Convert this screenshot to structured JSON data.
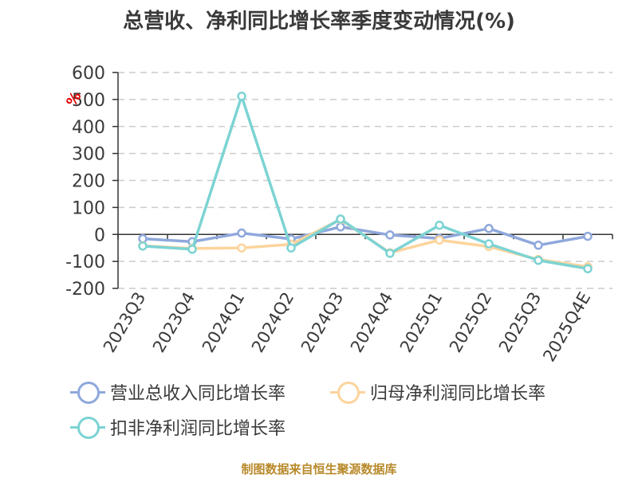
{
  "header": {
    "title": "总营收、净利同比增长率季度变动情况(%)"
  },
  "footer": {
    "source": "制图数据来自恒生聚源数据库"
  },
  "colors": {
    "revenue": "#8fa8dc",
    "net_profit": "#fdd49c",
    "deducted_net_profit": "#7dd3d3",
    "unit_label": "#e60000",
    "text": "#3a3a3a",
    "footer": "#b8892a"
  },
  "legend": {
    "items": [
      {
        "label": "营业总收入同比增长率",
        "color": "#8fa8dc"
      },
      {
        "label": "归母净利润同比增长率",
        "color": "#fdd49c"
      },
      {
        "label": "扣非净利润同比增长率",
        "color": "#7dd3d3"
      }
    ]
  },
  "chart_data": {
    "type": "line",
    "title": "总营收、净利同比增长率季度变动情况(%)",
    "xlabel": "",
    "ylabel": "%",
    "ylim": [
      -200,
      600
    ],
    "yticks": [
      600,
      500,
      400,
      300,
      200,
      100,
      0,
      -100,
      -200
    ],
    "grid": true,
    "legend_position": "bottom",
    "categories": [
      "2023Q3",
      "2023Q4",
      "2024Q1",
      "2024Q2",
      "2024Q3",
      "2024Q4",
      "2025Q1",
      "2025Q2",
      "2025Q3",
      "2025Q4E"
    ],
    "series": [
      {
        "name": "营业总收入同比增长率",
        "color": "#8fa8dc",
        "values": [
          -16,
          -27,
          5,
          -17,
          28,
          -2,
          -15,
          22,
          -40,
          -7
        ]
      },
      {
        "name": "归母净利润同比增长率",
        "color": "#fdd49c",
        "values": [
          -42,
          -52,
          -50,
          -37,
          55,
          -68,
          -21,
          -45,
          -93,
          -120
        ]
      },
      {
        "name": "扣非净利润同比增长率",
        "color": "#7dd3d3",
        "values": [
          -43,
          -55,
          512,
          -50,
          57,
          -70,
          34,
          -35,
          -96,
          -127
        ]
      }
    ]
  }
}
